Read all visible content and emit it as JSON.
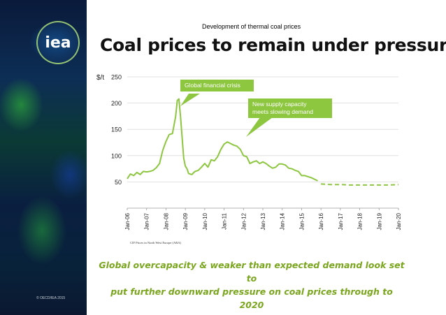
{
  "slide": {
    "subtitle": "Development of thermal coal prices",
    "title": "Coal prices to remain under pressure",
    "logo_text": "iea",
    "copyright": "© OECD/IEA 2015",
    "footer_line1": "Global overcapacity & weaker than expected demand look set to",
    "footer_line2": "put further downward pressure on coal prices through to 2020",
    "source_note": "CIF Prices in North West Europe (ARA)"
  },
  "colors": {
    "line": "#8dc63f",
    "callout_bg": "#8dc63f",
    "grid": "#d9d9d9",
    "footer_text": "#7aa61e"
  },
  "chart_data": {
    "type": "line",
    "ylabel": "$/t",
    "ylim": [
      0,
      250
    ],
    "yticks": [
      "50",
      "100",
      "150",
      "200",
      "250"
    ],
    "xlim": [
      "2006-01",
      "2020-01"
    ],
    "xticks": [
      "Jan-06",
      "Jan-07",
      "Jan-08",
      "Jan-09",
      "Jan-10",
      "Jan-11",
      "Jan-12",
      "Jan-13",
      "Jan-14",
      "Jan-15",
      "Jan-16",
      "Jan-17",
      "Jan-18",
      "Jan-19",
      "Jan-20"
    ],
    "grid": true,
    "annotations": [
      {
        "text_lines": [
          "Global financial crisis"
        ]
      },
      {
        "text_lines": [
          "New supply capacity",
          "meets  slowing demand"
        ]
      }
    ],
    "series": [
      {
        "style": "solid",
        "x": [
          "2006-01",
          "2006-03",
          "2006-05",
          "2006-07",
          "2006-09",
          "2006-11",
          "2007-01",
          "2007-03",
          "2007-05",
          "2007-07",
          "2007-09",
          "2007-11",
          "2008-01",
          "2008-03",
          "2008-05",
          "2008-07",
          "2008-08",
          "2008-09",
          "2008-10",
          "2008-11",
          "2008-12",
          "2009-01",
          "2009-02",
          "2009-03",
          "2009-05",
          "2009-07",
          "2009-09",
          "2009-11",
          "2010-01",
          "2010-03",
          "2010-05",
          "2010-07",
          "2010-09",
          "2010-11",
          "2011-01",
          "2011-03",
          "2011-05",
          "2011-07",
          "2011-09",
          "2011-11",
          "2012-01",
          "2012-03",
          "2012-05",
          "2012-07",
          "2012-09",
          "2012-11",
          "2013-01",
          "2013-03",
          "2013-05",
          "2013-07",
          "2013-09",
          "2013-11",
          "2014-01",
          "2014-03",
          "2014-05",
          "2014-07",
          "2014-09",
          "2014-11",
          "2015-01",
          "2015-03",
          "2015-05",
          "2015-07",
          "2015-09",
          "2015-11"
        ],
        "values": [
          56,
          65,
          62,
          68,
          64,
          70,
          69,
          70,
          72,
          77,
          85,
          110,
          127,
          140,
          142,
          175,
          205,
          208,
          175,
          135,
          95,
          80,
          75,
          66,
          64,
          70,
          72,
          78,
          85,
          78,
          92,
          90,
          98,
          112,
          122,
          126,
          123,
          120,
          118,
          112,
          100,
          98,
          85,
          88,
          90,
          85,
          88,
          85,
          80,
          76,
          78,
          84,
          84,
          82,
          76,
          75,
          72,
          70,
          62,
          62,
          60,
          58,
          55,
          52
        ]
      },
      {
        "style": "dashed",
        "x": [
          "2016-01",
          "2016-07",
          "2017-01",
          "2017-07",
          "2018-01",
          "2018-07",
          "2019-01",
          "2019-07",
          "2020-01"
        ],
        "values": [
          46,
          45,
          45,
          44,
          44,
          44,
          44,
          44,
          45
        ]
      }
    ]
  }
}
